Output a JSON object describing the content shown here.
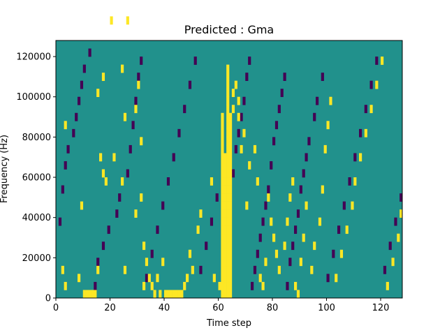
{
  "chart_data": {
    "type": "heatmap",
    "title": "Predicted : Gma",
    "xlabel": "Time step",
    "ylabel": "Frequency (Hz)",
    "xlim": [
      0,
      128
    ],
    "ylim": [
      0,
      128000
    ],
    "x_ticks": [
      0,
      20,
      40,
      60,
      80,
      100,
      120
    ],
    "y_ticks": [
      0,
      20000,
      40000,
      60000,
      80000,
      100000,
      120000
    ],
    "x_tick_labels": [
      "0",
      "20",
      "40",
      "60",
      "80",
      "100",
      "120"
    ],
    "y_tick_labels": [
      "0",
      "20000",
      "40000",
      "60000",
      "80000",
      "100000",
      "120000"
    ],
    "grid": false,
    "legend": "none",
    "colormap": "viridis",
    "values": [
      -1,
      0,
      1
    ],
    "colors": {
      "-1": "#440154",
      "0": "#21918c",
      "1": "#fde725"
    },
    "background_value": 0,
    "time_bins": 128,
    "frequency_bins": 32,
    "frequency_bin_hz": 4000,
    "cells_positive": [
      [
        2,
        3
      ],
      [
        3,
        1
      ],
      [
        3,
        21
      ],
      [
        8,
        2
      ],
      [
        9,
        11
      ],
      [
        10,
        0
      ],
      [
        11,
        0
      ],
      [
        12,
        0
      ],
      [
        13,
        0
      ],
      [
        14,
        0
      ],
      [
        15,
        3
      ],
      [
        15,
        25
      ],
      [
        16,
        17
      ],
      [
        17,
        15
      ],
      [
        17,
        27
      ],
      [
        18,
        14
      ],
      [
        20,
        34
      ],
      [
        21,
        17
      ],
      [
        24,
        14
      ],
      [
        24,
        28
      ],
      [
        25,
        3
      ],
      [
        25,
        22
      ],
      [
        26,
        34
      ],
      [
        29,
        10
      ],
      [
        29,
        23
      ],
      [
        30,
        26
      ],
      [
        31,
        12
      ],
      [
        31,
        19
      ],
      [
        32,
        1
      ],
      [
        32,
        6
      ],
      [
        33,
        4
      ],
      [
        34,
        2
      ],
      [
        35,
        1
      ],
      [
        36,
        0
      ],
      [
        37,
        2
      ],
      [
        38,
        0
      ],
      [
        39,
        4
      ],
      [
        40,
        0
      ],
      [
        41,
        0
      ],
      [
        42,
        0
      ],
      [
        43,
        0
      ],
      [
        44,
        0
      ],
      [
        45,
        0
      ],
      [
        46,
        0
      ],
      [
        47,
        1
      ],
      [
        48,
        2
      ],
      [
        49,
        5
      ],
      [
        50,
        3
      ],
      [
        52,
        8
      ],
      [
        53,
        10
      ],
      [
        57,
        14
      ],
      [
        58,
        2
      ],
      [
        60,
        1
      ],
      [
        61,
        0
      ],
      [
        61,
        1
      ],
      [
        61,
        2
      ],
      [
        61,
        3
      ],
      [
        61,
        4
      ],
      [
        61,
        5
      ],
      [
        61,
        6
      ],
      [
        61,
        7
      ],
      [
        61,
        8
      ],
      [
        61,
        9
      ],
      [
        61,
        10
      ],
      [
        61,
        11
      ],
      [
        61,
        12
      ],
      [
        61,
        13
      ],
      [
        61,
        14
      ],
      [
        61,
        15
      ],
      [
        61,
        16
      ],
      [
        61,
        17
      ],
      [
        61,
        18
      ],
      [
        61,
        19
      ],
      [
        61,
        20
      ],
      [
        61,
        21
      ],
      [
        61,
        22
      ],
      [
        62,
        0
      ],
      [
        62,
        1
      ],
      [
        62,
        2
      ],
      [
        62,
        3
      ],
      [
        62,
        4
      ],
      [
        62,
        5
      ],
      [
        62,
        6
      ],
      [
        62,
        7
      ],
      [
        62,
        8
      ],
      [
        62,
        9
      ],
      [
        62,
        10
      ],
      [
        62,
        11
      ],
      [
        62,
        12
      ],
      [
        62,
        13
      ],
      [
        62,
        14
      ],
      [
        62,
        15
      ],
      [
        62,
        16
      ],
      [
        62,
        17
      ],
      [
        63,
        0
      ],
      [
        63,
        1
      ],
      [
        63,
        2
      ],
      [
        63,
        3
      ],
      [
        63,
        4
      ],
      [
        63,
        5
      ],
      [
        63,
        6
      ],
      [
        63,
        7
      ],
      [
        63,
        8
      ],
      [
        63,
        9
      ],
      [
        63,
        10
      ],
      [
        63,
        11
      ],
      [
        63,
        12
      ],
      [
        63,
        13
      ],
      [
        63,
        14
      ],
      [
        63,
        15
      ],
      [
        63,
        16
      ],
      [
        63,
        17
      ],
      [
        63,
        18
      ],
      [
        63,
        19
      ],
      [
        63,
        20
      ],
      [
        63,
        21
      ],
      [
        63,
        22
      ],
      [
        63,
        23
      ],
      [
        63,
        24
      ],
      [
        63,
        25
      ],
      [
        63,
        26
      ],
      [
        63,
        27
      ],
      [
        63,
        28
      ],
      [
        64,
        0
      ],
      [
        64,
        1
      ],
      [
        64,
        2
      ],
      [
        64,
        3
      ],
      [
        64,
        4
      ],
      [
        64,
        5
      ],
      [
        64,
        6
      ],
      [
        64,
        7
      ],
      [
        64,
        8
      ],
      [
        64,
        9
      ],
      [
        64,
        10
      ],
      [
        64,
        11
      ],
      [
        64,
        12
      ],
      [
        64,
        13
      ],
      [
        64,
        14
      ],
      [
        64,
        15
      ],
      [
        64,
        16
      ],
      [
        64,
        17
      ],
      [
        64,
        18
      ],
      [
        64,
        19
      ],
      [
        64,
        20
      ],
      [
        64,
        21
      ],
      [
        64,
        22
      ],
      [
        65,
        23
      ],
      [
        65,
        25
      ],
      [
        66,
        26
      ],
      [
        67,
        22
      ],
      [
        67,
        24
      ],
      [
        68,
        18
      ],
      [
        69,
        20
      ],
      [
        70,
        11
      ],
      [
        71,
        16
      ],
      [
        73,
        18
      ],
      [
        74,
        14
      ],
      [
        75,
        2
      ],
      [
        76,
        1
      ],
      [
        77,
        4
      ],
      [
        78,
        12
      ],
      [
        79,
        9
      ],
      [
        80,
        7
      ],
      [
        81,
        5
      ],
      [
        82,
        3
      ],
      [
        84,
        6
      ],
      [
        85,
        9
      ],
      [
        86,
        12
      ],
      [
        87,
        14
      ],
      [
        88,
        1
      ],
      [
        89,
        0
      ],
      [
        90,
        4
      ],
      [
        91,
        7
      ],
      [
        92,
        11
      ],
      [
        94,
        3
      ],
      [
        95,
        6
      ],
      [
        97,
        9
      ],
      [
        98,
        13
      ],
      [
        99,
        18
      ],
      [
        100,
        21
      ],
      [
        101,
        24
      ],
      [
        103,
        2
      ],
      [
        105,
        5
      ],
      [
        107,
        8
      ],
      [
        109,
        11
      ],
      [
        110,
        14
      ],
      [
        112,
        17
      ],
      [
        114,
        20
      ],
      [
        116,
        23
      ],
      [
        118,
        26
      ],
      [
        120,
        29
      ],
      [
        122,
        1
      ],
      [
        124,
        4
      ],
      [
        126,
        7
      ],
      [
        127,
        10
      ]
    ],
    "cells_negative": [
      [
        1,
        9
      ],
      [
        2,
        13
      ],
      [
        3,
        16
      ],
      [
        4,
        18
      ],
      [
        6,
        20
      ],
      [
        7,
        22
      ],
      [
        8,
        24
      ],
      [
        9,
        26
      ],
      [
        10,
        28
      ],
      [
        12,
        30
      ],
      [
        14,
        1
      ],
      [
        15,
        4
      ],
      [
        17,
        6
      ],
      [
        19,
        8
      ],
      [
        22,
        10
      ],
      [
        23,
        12
      ],
      [
        26,
        15
      ],
      [
        27,
        18
      ],
      [
        28,
        21
      ],
      [
        29,
        24
      ],
      [
        30,
        27
      ],
      [
        31,
        29
      ],
      [
        33,
        2
      ],
      [
        35,
        5
      ],
      [
        37,
        8
      ],
      [
        39,
        11
      ],
      [
        41,
        14
      ],
      [
        43,
        17
      ],
      [
        45,
        20
      ],
      [
        47,
        23
      ],
      [
        49,
        26
      ],
      [
        51,
        29
      ],
      [
        53,
        3
      ],
      [
        55,
        6
      ],
      [
        57,
        9
      ],
      [
        59,
        12
      ],
      [
        65,
        15
      ],
      [
        66,
        18
      ],
      [
        67,
        20
      ],
      [
        68,
        22
      ],
      [
        69,
        24
      ],
      [
        70,
        27
      ],
      [
        71,
        29
      ],
      [
        72,
        1
      ],
      [
        73,
        3
      ],
      [
        74,
        5
      ],
      [
        75,
        7
      ],
      [
        76,
        9
      ],
      [
        77,
        11
      ],
      [
        78,
        13
      ],
      [
        79,
        16
      ],
      [
        80,
        19
      ],
      [
        81,
        21
      ],
      [
        82,
        23
      ],
      [
        83,
        25
      ],
      [
        84,
        27
      ],
      [
        85,
        1
      ],
      [
        86,
        4
      ],
      [
        87,
        6
      ],
      [
        88,
        8
      ],
      [
        89,
        10
      ],
      [
        90,
        13
      ],
      [
        91,
        15
      ],
      [
        92,
        17
      ],
      [
        93,
        19
      ],
      [
        95,
        22
      ],
      [
        96,
        24
      ],
      [
        98,
        27
      ],
      [
        100,
        2
      ],
      [
        102,
        5
      ],
      [
        104,
        8
      ],
      [
        106,
        11
      ],
      [
        108,
        14
      ],
      [
        110,
        17
      ],
      [
        112,
        20
      ],
      [
        114,
        23
      ],
      [
        116,
        26
      ],
      [
        118,
        29
      ],
      [
        121,
        3
      ],
      [
        123,
        6
      ],
      [
        125,
        9
      ],
      [
        127,
        12
      ]
    ]
  }
}
